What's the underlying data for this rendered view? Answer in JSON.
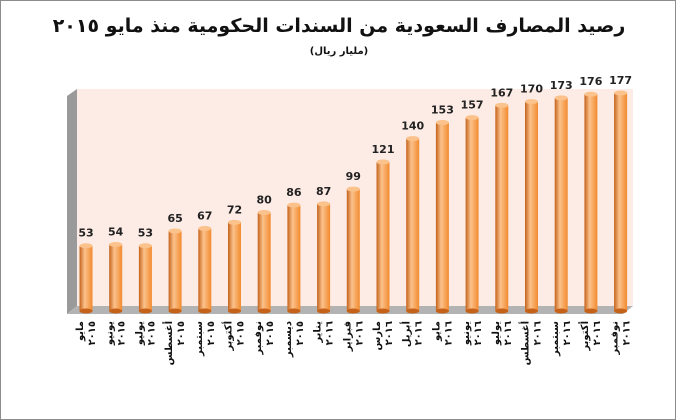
{
  "chart_data": {
    "type": "bar",
    "title": "رصيد المصارف السعودية من السندات الحكومية منذ مايو ٢٠١٥",
    "subtitle": "(مليار ريال)",
    "categories": [
      [
        "مايو",
        "٢٠١٥"
      ],
      [
        "يونيو",
        "٢٠١٥"
      ],
      [
        "يوليو",
        "٢٠١٥"
      ],
      [
        "أغسطس",
        "٢٠١٥"
      ],
      [
        "سبتمبر",
        "٢٠١٥"
      ],
      [
        "أكتوبر",
        "٢٠١٥"
      ],
      [
        "نوفمبر",
        "٢٠١٥"
      ],
      [
        "ديسمبر",
        "٢٠١٥"
      ],
      [
        "يناير",
        "٢٠١٦"
      ],
      [
        "فبراير",
        "٢٠١٦"
      ],
      [
        "مارس",
        "٢٠١٦"
      ],
      [
        "أبريل",
        "٢٠١٦"
      ],
      [
        "مايو",
        "٢٠١٦"
      ],
      [
        "يونيو",
        "٢٠١٦"
      ],
      [
        "يوليو",
        "٢٠١٦"
      ],
      [
        "أغسطس",
        "٢٠١٦"
      ],
      [
        "سبتمبر",
        "٢٠١٦"
      ],
      [
        "أكتوبر",
        "٢٠١٦"
      ],
      [
        "نوفمبر",
        "٢٠١٦"
      ]
    ],
    "values": [
      53,
      54,
      53,
      65,
      67,
      72,
      80,
      86,
      87,
      99,
      121,
      140,
      153,
      157,
      167,
      170,
      173,
      176,
      177
    ],
    "ylim": [
      0,
      177
    ],
    "grid": false,
    "legend": "none",
    "colors": {
      "bar": "#f28a2e",
      "bar_light": "#fbc28c",
      "bar_dark": "#c5621a",
      "wall": "#fdece6",
      "floor": "#b3b3b3"
    }
  }
}
